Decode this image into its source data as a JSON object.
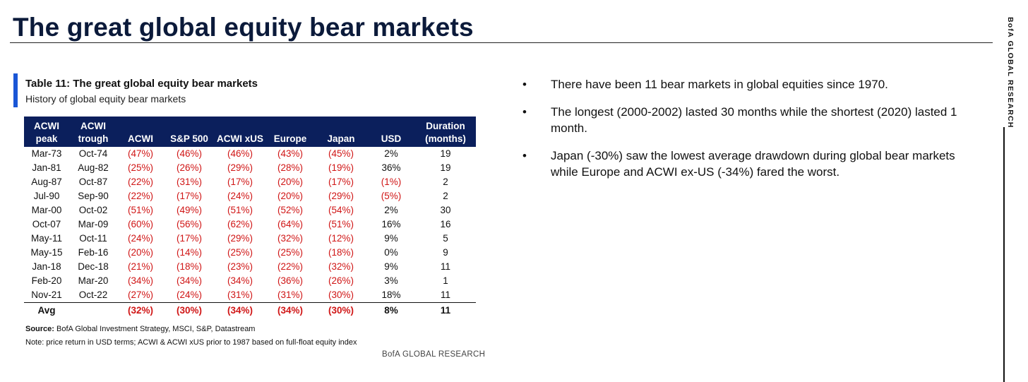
{
  "header": {
    "title": "The great global equity bear markets",
    "side_label": "BofA GLOBAL RESEARCH"
  },
  "table": {
    "title": "Table 11: The great global equity bear markets",
    "subtitle": "History of global equity bear markets",
    "columns": [
      {
        "l1": "ACWI",
        "l2": "peak"
      },
      {
        "l1": "ACWI",
        "l2": "trough"
      },
      {
        "l1": "",
        "l2": "ACWI"
      },
      {
        "l1": "",
        "l2": "S&P 500"
      },
      {
        "l1": "",
        "l2": "ACWI xUS"
      },
      {
        "l1": "",
        "l2": "Europe"
      },
      {
        "l1": "",
        "l2": "Japan"
      },
      {
        "l1": "",
        "l2": "USD"
      },
      {
        "l1": "Duration",
        "l2": "(months)"
      }
    ],
    "rows": [
      [
        "Mar-73",
        "Oct-74",
        "(47%)",
        "(46%)",
        "(46%)",
        "(43%)",
        "(45%)",
        "2%",
        "19"
      ],
      [
        "Jan-81",
        "Aug-82",
        "(25%)",
        "(26%)",
        "(29%)",
        "(28%)",
        "(19%)",
        "36%",
        "19"
      ],
      [
        "Aug-87",
        "Oct-87",
        "(22%)",
        "(31%)",
        "(17%)",
        "(20%)",
        "(17%)",
        "(1%)",
        "2"
      ],
      [
        "Jul-90",
        "Sep-90",
        "(22%)",
        "(17%)",
        "(24%)",
        "(20%)",
        "(29%)",
        "(5%)",
        "2"
      ],
      [
        "Mar-00",
        "Oct-02",
        "(51%)",
        "(49%)",
        "(51%)",
        "(52%)",
        "(54%)",
        "2%",
        "30"
      ],
      [
        "Oct-07",
        "Mar-09",
        "(60%)",
        "(56%)",
        "(62%)",
        "(64%)",
        "(51%)",
        "16%",
        "16"
      ],
      [
        "May-11",
        "Oct-11",
        "(24%)",
        "(17%)",
        "(29%)",
        "(32%)",
        "(12%)",
        "9%",
        "5"
      ],
      [
        "May-15",
        "Feb-16",
        "(20%)",
        "(14%)",
        "(25%)",
        "(25%)",
        "(18%)",
        "0%",
        "9"
      ],
      [
        "Jan-18",
        "Dec-18",
        "(21%)",
        "(18%)",
        "(23%)",
        "(22%)",
        "(32%)",
        "9%",
        "11"
      ],
      [
        "Feb-20",
        "Mar-20",
        "(34%)",
        "(34%)",
        "(34%)",
        "(36%)",
        "(26%)",
        "3%",
        "1"
      ],
      [
        "Nov-21",
        "Oct-22",
        "(27%)",
        "(24%)",
        "(31%)",
        "(31%)",
        "(30%)",
        "18%",
        "11"
      ]
    ],
    "avg_row": [
      "Avg",
      "",
      "(32%)",
      "(30%)",
      "(34%)",
      "(34%)",
      "(30%)",
      "8%",
      "11"
    ],
    "source_label": "Source:",
    "source_text": "BofA Global Investment Strategy, MSCI, S&P, Datastream",
    "note": "Note: price return in USD terms; ACWI & ACWI xUS prior to 1987 based on full-float equity index",
    "credit": "BofA GLOBAL RESEARCH"
  },
  "bullets": [
    "There have been 11 bear markets in global equities since 1970.",
    "The longest (2000-2002) lasted 30 months while the shortest (2020) lasted 1 month.",
    "Japan (-30%) saw the lowest average drawdown during global bear markets while Europe and ACWI ex-US (-34%) fared the worst."
  ],
  "colors": {
    "navy_header": "#0b1f5c",
    "accent_blue": "#1a56d6",
    "negative_red": "#d01515"
  }
}
